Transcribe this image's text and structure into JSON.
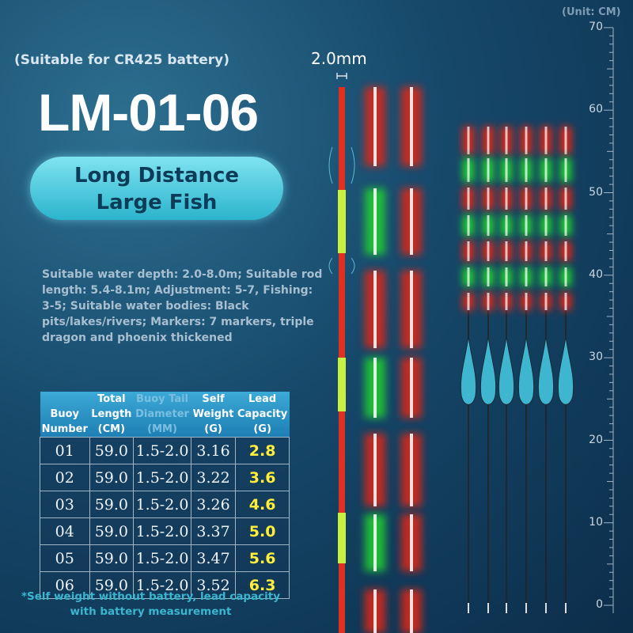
{
  "header": {
    "battery_note": "(Suitable for CR425 battery)",
    "model": "LM-01-06",
    "badge_line1": "Long Distance",
    "badge_line2": "Large Fish",
    "description": "Suitable water depth: 2.0-8.0m; Suitable rod length: 5.4-8.1m; Adjustment: 5-7, Fishing: 3-5; Suitable water bodies: Black pits/lakes/rivers; Markers: 7 markers, triple dragon and phoenix thickened"
  },
  "diameter_label": "2.0mm",
  "ruler": {
    "unit": "(Unit: CM)",
    "labels": [
      70,
      60,
      50,
      40,
      30,
      20,
      10,
      0
    ]
  },
  "table": {
    "headers": [
      "Buoy Number",
      "Total Length (CM)",
      "Buoy Tail Diameter (MM)",
      "Self Weight (G)",
      "Lead Capacity (G)"
    ],
    "rows": [
      [
        "01",
        "59.0",
        "1.5-2.0",
        "3.16",
        "2.8"
      ],
      [
        "02",
        "59.0",
        "1.5-2.0",
        "3.22",
        "3.6"
      ],
      [
        "03",
        "59.0",
        "1.5-2.0",
        "3.26",
        "4.6"
      ],
      [
        "04",
        "59.0",
        "1.5-2.0",
        "3.37",
        "5.0"
      ],
      [
        "05",
        "59.0",
        "1.5-2.0",
        "3.47",
        "5.6"
      ],
      [
        "06",
        "59.0",
        "1.5-2.0",
        "3.52",
        "6.3"
      ]
    ]
  },
  "footnote": "*Self weight without battery, lead capacity with battery measurement"
}
